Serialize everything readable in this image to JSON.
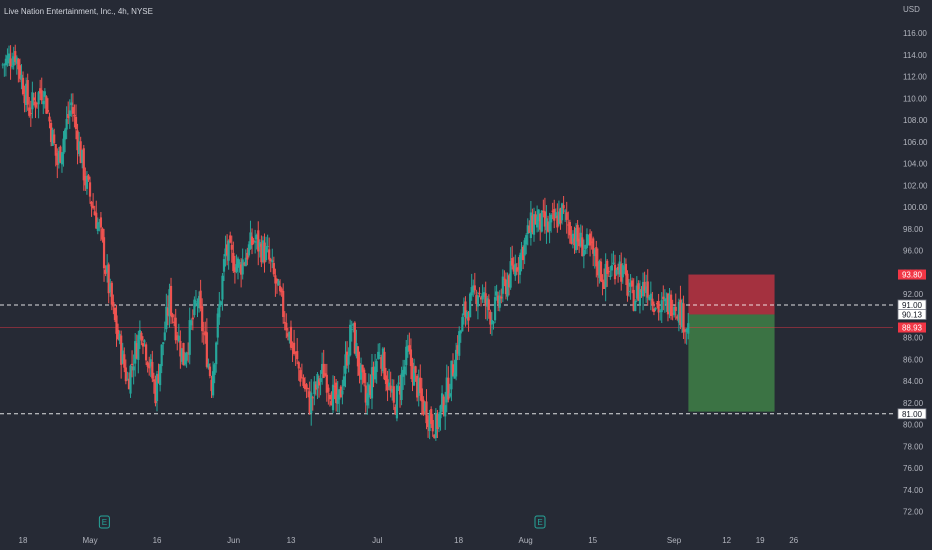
{
  "chart_data": {
    "type": "candlestick",
    "title": "Live Nation Entertainment, Inc., 4h, NYSE",
    "currency": "USD",
    "ylim": [
      71,
      117.5
    ],
    "y_ticks": [
      72,
      74,
      76,
      78,
      80,
      82,
      84,
      86,
      88,
      90,
      92,
      94,
      96,
      98,
      100,
      102,
      104,
      106,
      108,
      110,
      112,
      114,
      116
    ],
    "y_tick_labels": [
      "72.00",
      "74.00",
      "76.00",
      "78.00",
      "80.00",
      "82.00",
      "84.00",
      "86.00",
      "88.00",
      "90.00",
      "92.00",
      "94.00",
      "96.00",
      "98.00",
      "100.00",
      "102.00",
      "104.00",
      "106.00",
      "108.00",
      "110.00",
      "112.00",
      "114.00",
      "116.00"
    ],
    "x_ticks": [
      {
        "label": "18",
        "date": "2022-04-18"
      },
      {
        "label": "May",
        "date": "2022-05-02"
      },
      {
        "label": "16",
        "date": "2022-05-16"
      },
      {
        "label": "Jun",
        "date": "2022-06-01"
      },
      {
        "label": "13",
        "date": "2022-06-13"
      },
      {
        "label": "Jul",
        "date": "2022-07-01"
      },
      {
        "label": "18",
        "date": "2022-07-18"
      },
      {
        "label": "Aug",
        "date": "2022-08-01"
      },
      {
        "label": "15",
        "date": "2022-08-15"
      },
      {
        "label": "Sep",
        "date": "2022-09-01"
      },
      {
        "label": "12",
        "date": "2022-09-12"
      },
      {
        "label": "19",
        "date": "2022-09-19"
      },
      {
        "label": "26",
        "date": "2022-09-26"
      }
    ],
    "anchors": [
      113,
      114.2,
      109,
      111,
      104,
      109.5,
      102.5,
      98,
      90,
      84,
      89,
      83,
      91.5,
      86,
      91.5,
      84,
      96,
      94.5,
      97,
      95.5,
      91,
      86,
      82,
      85,
      81.5,
      89,
      82,
      87,
      81.5,
      86.5,
      82,
      79.8,
      84,
      90,
      92.5,
      90,
      93,
      95.5,
      99,
      98,
      99.5,
      97,
      96,
      93.5,
      95,
      91.5,
      93,
      90.5,
      91.5,
      88.9
    ],
    "horizontal_lines": [
      {
        "value": 91.0,
        "label": "91.00",
        "style": "dashed",
        "color": "#FFFFFF"
      },
      {
        "value": 90.13,
        "label": "90.13",
        "style": "none",
        "color": "#FFFFFF"
      },
      {
        "value": 81.0,
        "label": "81.00",
        "style": "dashed",
        "color": "#FFFFFF"
      }
    ],
    "current_price": {
      "value": 88.93,
      "label": "88.93",
      "color": "#F23645"
    },
    "position": {
      "type": "long",
      "entry": 90.13,
      "stop": 93.8,
      "target": 81.2,
      "stop_label": "93.80",
      "x_start_date": "2022-09-04",
      "x_end_date": "2022-09-22"
    },
    "earnings_markers": [
      {
        "date": "2022-05-05",
        "label": "E"
      },
      {
        "date": "2022-08-04",
        "label": "E"
      }
    ],
    "colors": {
      "background": "#262A35",
      "up": "#26A69A",
      "down": "#EF5350",
      "stop_zone": "rgba(242,54,69,0.62)",
      "target_zone": "rgba(76,175,80,0.55)"
    }
  }
}
